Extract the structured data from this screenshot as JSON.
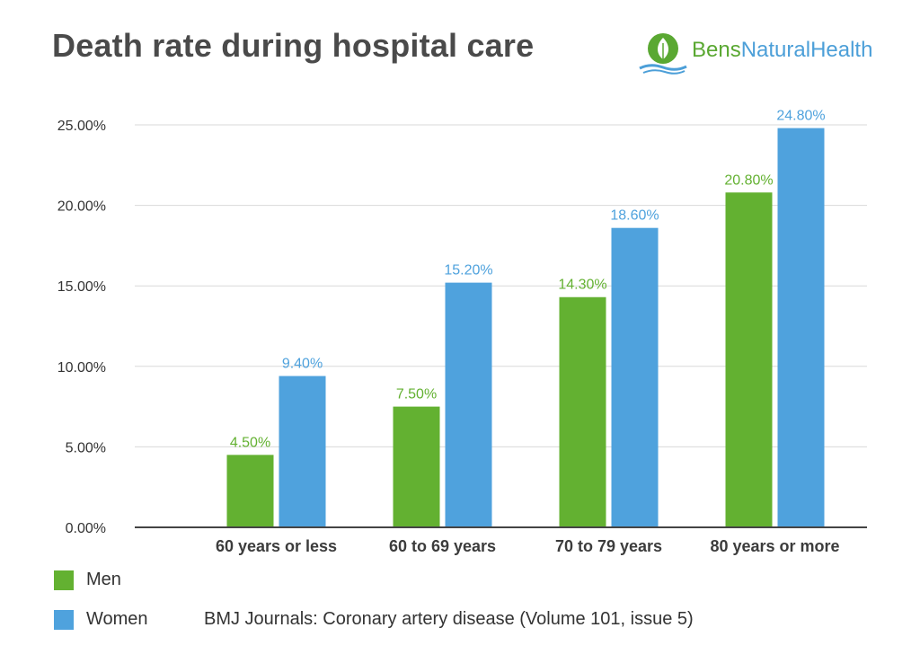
{
  "title": "Death rate during hospital care",
  "logo": {
    "part1": "Bens",
    "part2": "NaturalHealth"
  },
  "source": "BMJ Journals: Coronary artery disease (Volume 101, issue 5)",
  "colors": {
    "men": "#63b131",
    "women": "#4fa2dd",
    "axis": "#444444",
    "grid": "#d9d9d9",
    "logo_green": "#5aa832",
    "logo_blue": "#4c9fd8"
  },
  "chart_data": {
    "type": "bar",
    "title": "Death rate during hospital care",
    "categories": [
      "60 years or less",
      "60 to 69 years",
      "70 to 79 years",
      "80 years or more"
    ],
    "series": [
      {
        "name": "Men",
        "values": [
          4.5,
          7.5,
          14.3,
          20.8
        ],
        "labels": [
          "4.50%",
          "7.50%",
          "14.30%",
          "20.80%"
        ],
        "color": "#63b131"
      },
      {
        "name": "Women",
        "values": [
          9.4,
          15.2,
          18.6,
          24.8
        ],
        "labels": [
          "9.40%",
          "15.20%",
          "18.60%",
          "24.80%"
        ],
        "color": "#4fa2dd"
      }
    ],
    "yticks": [
      {
        "value": 0,
        "label": "0.00%"
      },
      {
        "value": 5,
        "label": "5.00%"
      },
      {
        "value": 10,
        "label": "10.00%"
      },
      {
        "value": 15,
        "label": "15.00%"
      },
      {
        "value": 20,
        "label": "20.00%"
      },
      {
        "value": 25,
        "label": "25.00%"
      }
    ],
    "ylim": [
      0,
      25
    ],
    "xlabel": "",
    "ylabel": "",
    "grid": true,
    "legend": "bottom-left"
  }
}
